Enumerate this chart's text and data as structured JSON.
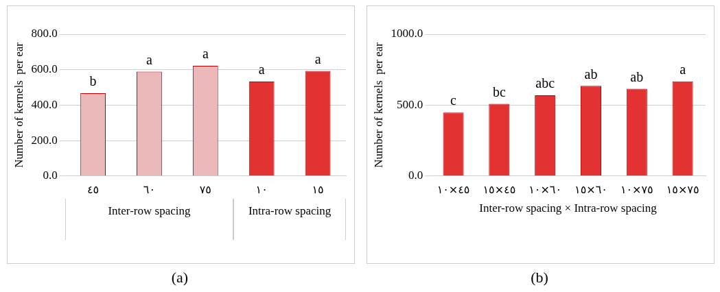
{
  "chart_data": [
    {
      "type": "bar",
      "title": "(a)",
      "ylabel": "Number of kernels  per ear",
      "categories": [
        "٤٥",
        "٦٠",
        "٧٥",
        "١٠",
        "١٥"
      ],
      "values": [
        467,
        589,
        622,
        533,
        593
      ],
      "colors": [
        "#eab8b8",
        "#eab8b8",
        "#eab8b8",
        "#e23232",
        "#e23232"
      ],
      "ylim": [
        0,
        800
      ],
      "yticks": [
        {
          "value": 0,
          "label": "0.0"
        },
        {
          "value": 200,
          "label": "200.0"
        },
        {
          "value": 400,
          "label": "400.0"
        },
        {
          "value": 600,
          "label": "600.0"
        },
        {
          "value": 800,
          "label": "800.0"
        }
      ],
      "grid": "y",
      "legend": false,
      "annotations": [
        {
          "text": "b",
          "x": "٤٥",
          "y": 467
        },
        {
          "text": "a",
          "x": "٦٠",
          "y": 589
        },
        {
          "text": "a",
          "x": "٧٥",
          "y": 622
        },
        {
          "text": "a",
          "x": "١٠",
          "y": 533
        },
        {
          "text": "a",
          "x": "١٥",
          "y": 593
        },
        "Inter-row spacing",
        "Intra-row spacing"
      ]
    },
    {
      "type": "bar",
      "title": "(b)",
      "ylabel": "Number of kernels  per ear",
      "xlabel": "Inter-row spacing × Intra-row spacing",
      "categories": [
        "٤٥×١٠",
        "٤٥×١٥",
        "٦٠×١٠",
        "٦٠×١٥",
        "٧٥×١٠",
        "٧٥×١٥"
      ],
      "values": [
        448,
        509,
        570,
        636,
        615,
        667
      ],
      "color": "#e23232",
      "ylim": [
        0,
        1000
      ],
      "yticks": [
        {
          "value": 0,
          "label": "0.0"
        },
        {
          "value": 500,
          "label": "500.0"
        },
        {
          "value": 1000,
          "label": "1000.0"
        }
      ],
      "grid": "y",
      "legend": false,
      "annotations": [
        {
          "text": "c",
          "x": "٤٥×١٠",
          "y": 448
        },
        {
          "text": "bc",
          "x": "٤٥×١٥",
          "y": 509
        },
        {
          "text": "abc",
          "x": "٦٠×١٠",
          "y": 570
        },
        {
          "text": "ab",
          "x": "٦٠×١٥",
          "y": 636
        },
        {
          "text": "ab",
          "x": "٧٥×١٠",
          "y": 615
        },
        {
          "text": "a",
          "x": "٧٥×١٥",
          "y": 667
        }
      ]
    }
  ]
}
